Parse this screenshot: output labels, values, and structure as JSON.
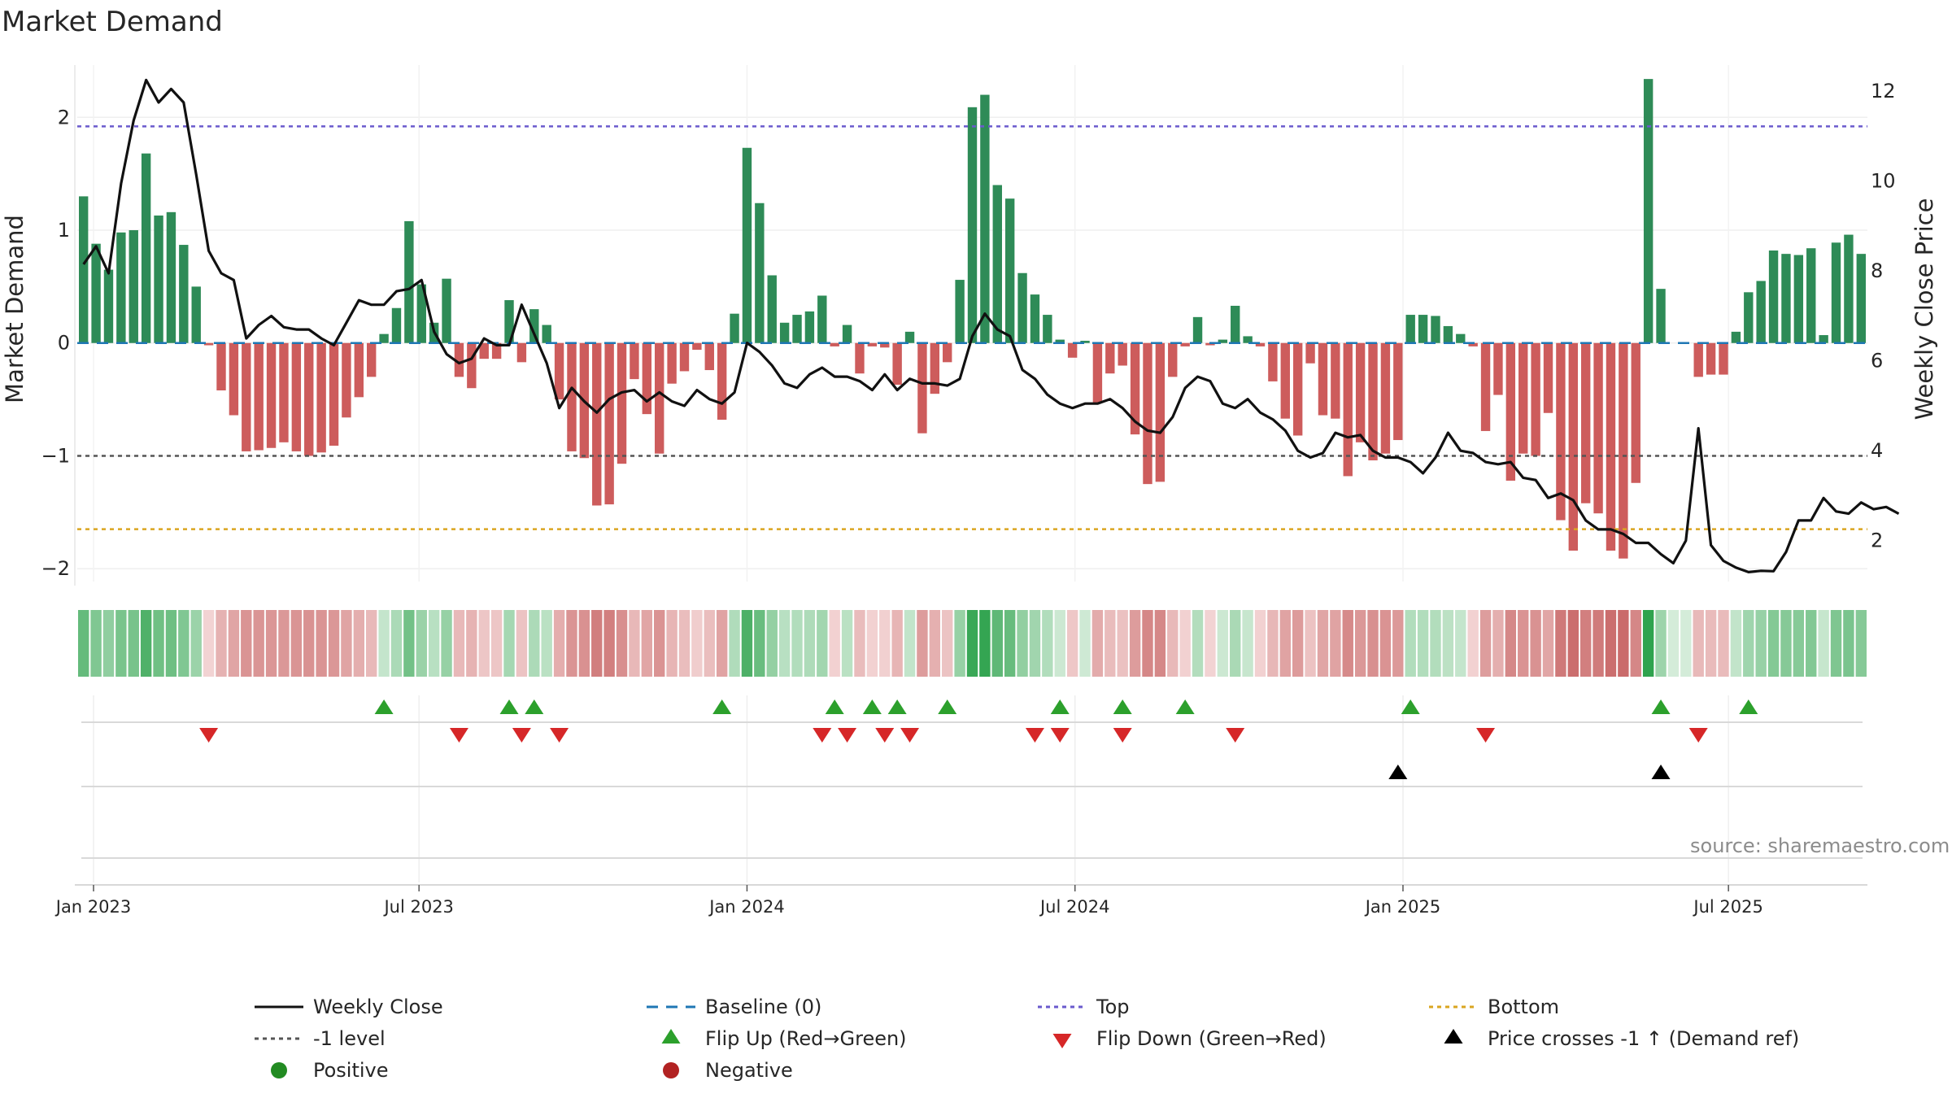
{
  "chart_data": {
    "type": "bar",
    "title": "Market Demand",
    "ylabel": "Market Demand",
    "y2label": "Weekly Close Price",
    "ylim": [
      -2.15,
      2.55
    ],
    "y2lim": [
      1.0,
      12.8
    ],
    "yticks": [
      "2",
      "1",
      "0",
      "−1",
      "−2"
    ],
    "y2ticks": [
      "12",
      "10",
      "8",
      "6",
      "4",
      "2"
    ],
    "xlabels": [
      "Jan 2023",
      "Jul 2023",
      "Jan 2024",
      "Jul 2024",
      "Jan 2025",
      "Jul 2025"
    ],
    "reference_lines": {
      "top": 1.92,
      "minus_one": -1.0,
      "bottom": -1.65,
      "baseline": 0
    },
    "colors": {
      "positive": "#2e8b57",
      "negative": "#cd5c5c",
      "price": "#111111",
      "top": "#6a5acd",
      "minus_one": "#555555",
      "bottom": "#daa520",
      "baseline": "#1f77b4",
      "flip_up": "#2ca02c",
      "flip_down": "#d62728",
      "cross": "#000000"
    },
    "demand": [
      1.3,
      0.88,
      0.65,
      0.98,
      1.0,
      1.68,
      1.13,
      1.16,
      0.87,
      0.5,
      -0.02,
      -0.42,
      -0.64,
      -0.96,
      -0.95,
      -0.93,
      -0.88,
      -0.96,
      -1.0,
      -0.97,
      -0.91,
      -0.66,
      -0.48,
      -0.3,
      0.08,
      0.31,
      1.08,
      0.52,
      0.18,
      0.57,
      -0.3,
      -0.4,
      -0.14,
      -0.14,
      0.38,
      -0.17,
      0.3,
      0.16,
      -0.5,
      -0.96,
      -1.02,
      -1.44,
      -1.43,
      -1.07,
      -0.32,
      -0.63,
      -0.98,
      -0.36,
      -0.25,
      -0.06,
      -0.24,
      -0.68,
      0.26,
      1.73,
      1.24,
      0.6,
      0.18,
      0.25,
      0.28,
      0.42,
      -0.03,
      0.16,
      -0.27,
      -0.03,
      -0.04,
      -0.37,
      0.1,
      -0.8,
      -0.45,
      -0.17,
      0.56,
      2.09,
      2.2,
      1.4,
      1.28,
      0.62,
      0.43,
      0.25,
      0.03,
      -0.13,
      0.02,
      -0.53,
      -0.27,
      -0.2,
      -0.81,
      -1.25,
      -1.23,
      -0.3,
      -0.03,
      0.23,
      -0.02,
      0.03,
      0.33,
      0.06,
      -0.03,
      -0.34,
      -0.67,
      -0.82,
      -0.18,
      -0.64,
      -0.67,
      -1.18,
      -0.88,
      -1.04,
      -0.98,
      -0.86,
      0.25,
      0.25,
      0.24,
      0.15,
      0.08,
      -0.03,
      -0.78,
      -0.46,
      -1.22,
      -0.98,
      -1.0,
      -0.62,
      -1.57,
      -1.84,
      -1.42,
      -1.51,
      -1.84,
      -1.91,
      -1.24,
      2.34,
      0.48,
      0.0,
      0.0,
      -0.3,
      -0.28,
      -0.28,
      0.1,
      0.45,
      0.55,
      0.82,
      0.79,
      0.78,
      0.84,
      0.07,
      0.89,
      0.96,
      0.79
    ],
    "price": [
      8.15,
      8.55,
      7.95,
      9.95,
      11.35,
      12.25,
      11.75,
      12.05,
      11.75,
      10.15,
      8.45,
      7.95,
      7.8,
      6.5,
      6.8,
      7.0,
      6.75,
      6.7,
      6.7,
      6.5,
      6.35,
      6.85,
      7.35,
      7.25,
      7.25,
      7.55,
      7.6,
      7.8,
      6.65,
      6.15,
      5.95,
      6.05,
      6.5,
      6.35,
      6.35,
      7.25,
      6.6,
      5.95,
      4.95,
      5.4,
      5.1,
      4.85,
      5.15,
      5.3,
      5.35,
      5.1,
      5.3,
      5.1,
      5.0,
      5.35,
      5.15,
      5.05,
      5.3,
      6.4,
      6.2,
      5.9,
      5.5,
      5.4,
      5.7,
      5.85,
      5.65,
      5.65,
      5.55,
      5.35,
      5.7,
      5.35,
      5.6,
      5.5,
      5.5,
      5.45,
      5.6,
      6.55,
      7.05,
      6.7,
      6.55,
      5.8,
      5.6,
      5.25,
      5.05,
      4.95,
      5.05,
      5.05,
      5.15,
      4.95,
      4.65,
      4.45,
      4.4,
      4.75,
      5.4,
      5.65,
      5.55,
      5.05,
      4.95,
      5.15,
      4.85,
      4.7,
      4.45,
      4.0,
      3.85,
      3.95,
      4.4,
      4.3,
      4.35,
      4.0,
      3.85,
      3.85,
      3.75,
      3.5,
      3.85,
      4.4,
      4.0,
      3.95,
      3.75,
      3.7,
      3.75,
      3.4,
      3.35,
      2.95,
      3.05,
      2.9,
      2.45,
      2.25,
      2.25,
      2.15,
      1.95,
      1.95,
      1.7,
      1.5,
      2.0,
      4.5,
      1.9,
      1.55,
      1.4,
      1.3,
      1.33,
      1.32,
      1.75,
      2.45,
      2.45,
      2.95,
      2.65,
      2.6,
      2.85,
      2.7,
      2.75,
      2.6
    ],
    "flip_up_weeks": [
      24,
      34,
      36,
      51,
      60,
      63,
      65,
      69,
      78,
      83,
      88,
      106,
      126,
      133
    ],
    "flip_down_weeks": [
      10,
      30,
      35,
      38,
      59,
      61,
      64,
      66,
      76,
      78,
      83,
      92,
      112,
      129
    ],
    "cross_weeks": [
      105,
      126
    ],
    "legend": {
      "weekly_close": "Weekly Close",
      "baseline": "Baseline (0)",
      "top": "Top",
      "bottom": "Bottom",
      "minus_one": "-1 level",
      "flip_up": "Flip Up (Red→Green)",
      "flip_down": "Flip Down (Green→Red)",
      "cross": "Price crosses -1 ↑ (Demand ref)",
      "positive": "Positive",
      "negative": "Negative"
    },
    "source": "source: sharemaestro.com"
  }
}
